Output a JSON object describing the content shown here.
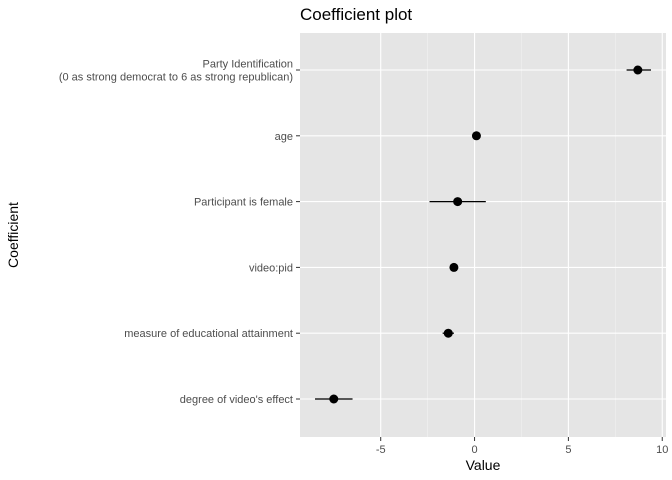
{
  "chart_data": {
    "type": "scatter",
    "subtype": "coefficient-plot-with-intervals",
    "title": "Coefficient plot",
    "xlabel": "Value",
    "ylabel": "Coefficient",
    "xlim": [
      -9.3,
      10.2
    ],
    "x_ticks": [
      -5,
      0,
      5,
      10
    ],
    "x_tick_labels": [
      "-5",
      "0",
      "5",
      "10"
    ],
    "grid": true,
    "legend": "none",
    "colors": {
      "panel": "#e5e5e5",
      "grid": "#ffffff",
      "point": "#000000"
    },
    "coefficients": [
      {
        "label_lines": [
          "Party Identification",
          "(0 as strong democrat to 6 as strong republican)"
        ],
        "value": 8.7,
        "low": 8.1,
        "high": 9.4
      },
      {
        "label_lines": [
          "age"
        ],
        "value": 0.1,
        "low": 0.05,
        "high": 0.15
      },
      {
        "label_lines": [
          "Participant is female"
        ],
        "value": -0.9,
        "low": -2.4,
        "high": 0.6
      },
      {
        "label_lines": [
          "video:pid"
        ],
        "value": -1.1,
        "low": -1.3,
        "high": -0.9
      },
      {
        "label_lines": [
          "measure of educational attainment"
        ],
        "value": -1.4,
        "low": -1.7,
        "high": -1.1
      },
      {
        "label_lines": [
          "degree of video's effect"
        ],
        "value": -7.5,
        "low": -8.5,
        "high": -6.5
      }
    ]
  }
}
